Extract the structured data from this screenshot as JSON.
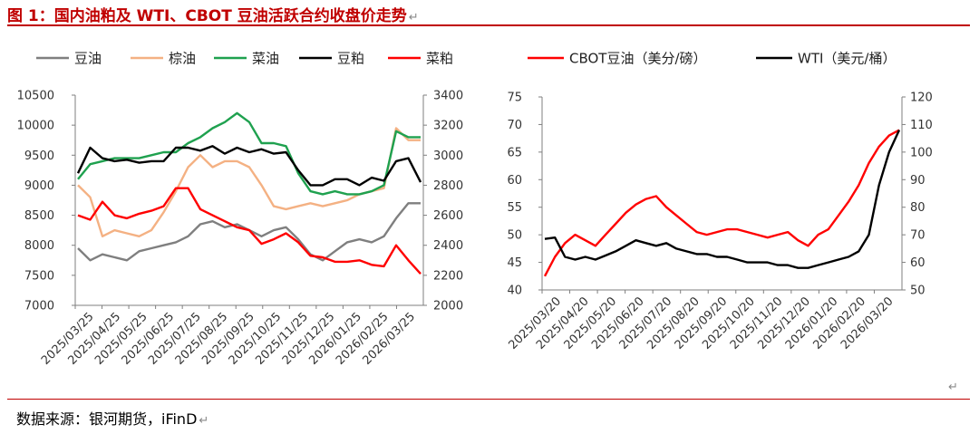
{
  "figure": {
    "title": "图 1：国内油粕及 WTI、CBOT 豆油活跃合约收盘价走势",
    "source": "数据来源：银河期货，iFinD"
  },
  "chart_data": [
    {
      "type": "line",
      "legend": [
        "豆油",
        "棕油",
        "菜油",
        "豆粕",
        "菜粕"
      ],
      "x_ticks": [
        "2025/03/25",
        "2025/04/25",
        "2025/05/25",
        "2025/06/25",
        "2025/07/25",
        "2025/08/25",
        "2025/09/25",
        "2025/10/25",
        "2025/11/25",
        "2025/12/25",
        "2026/01/25",
        "2026/02/25",
        "2026/03/25"
      ],
      "left_axis": {
        "ticks": [
          10500,
          10000,
          9500,
          9000,
          8500,
          8000,
          7500,
          7000
        ],
        "range": [
          7000,
          10500
        ]
      },
      "right_axis": {
        "ticks": [
          3400,
          3200,
          3000,
          2800,
          2600,
          2400,
          2200,
          2000
        ],
        "range": [
          2000,
          3400
        ]
      },
      "series": [
        {
          "name": "豆油",
          "axis": "left",
          "color": "#7f7f7f",
          "values": [
            7950,
            7750,
            7850,
            7800,
            7750,
            7900,
            7950,
            8000,
            8050,
            8150,
            8350,
            8400,
            8300,
            8350,
            8250,
            8150,
            8250,
            8300,
            8100,
            7850,
            7750,
            7900,
            8050,
            8100,
            8050,
            8150,
            8450,
            8700,
            8700
          ]
        },
        {
          "name": "棕油",
          "axis": "left",
          "color": "#f4b183",
          "values": [
            9000,
            8800,
            8150,
            8250,
            8200,
            8150,
            8250,
            8550,
            8900,
            9300,
            9500,
            9300,
            9400,
            9400,
            9300,
            9000,
            8650,
            8600,
            8650,
            8700,
            8650,
            8700,
            8750,
            8850,
            8900,
            8950,
            9950,
            9750,
            9750
          ]
        },
        {
          "name": "菜油",
          "axis": "left",
          "color": "#1fa14f",
          "values": [
            9100,
            9350,
            9400,
            9450,
            9450,
            9450,
            9500,
            9550,
            9550,
            9700,
            9800,
            9950,
            10050,
            10200,
            10050,
            9700,
            9700,
            9650,
            9200,
            8900,
            8850,
            8900,
            8850,
            8850,
            8900,
            9000,
            9900,
            9800,
            9800
          ]
        },
        {
          "name": "豆粕",
          "axis": "right",
          "color": "#000000",
          "values": [
            2880,
            3050,
            2980,
            2960,
            2970,
            2950,
            2960,
            2960,
            3050,
            3050,
            3030,
            3060,
            3010,
            3050,
            3020,
            3040,
            3010,
            3020,
            2900,
            2800,
            2800,
            2840,
            2840,
            2800,
            2850,
            2830,
            2960,
            2980,
            2820
          ]
        },
        {
          "name": "菜粕",
          "axis": "right",
          "color": "#ff0000",
          "values": [
            2600,
            2570,
            2690,
            2600,
            2580,
            2610,
            2630,
            2660,
            2780,
            2780,
            2640,
            2600,
            2560,
            2520,
            2500,
            2410,
            2440,
            2480,
            2420,
            2330,
            2320,
            2290,
            2290,
            2300,
            2270,
            2260,
            2400,
            2300,
            2210
          ]
        }
      ]
    },
    {
      "type": "line",
      "legend": [
        "CBOT豆油（美分/磅）",
        "WTI（美元/桶）"
      ],
      "x_ticks": [
        "2025/03/20",
        "2025/04/20",
        "2025/05/20",
        "2025/06/20",
        "2025/07/20",
        "2025/08/20",
        "2025/09/20",
        "2025/10/20",
        "2025/11/20",
        "2025/12/20",
        "2026/01/20",
        "2026/02/20",
        "2026/03/20"
      ],
      "left_axis": {
        "ticks": [
          75,
          70,
          65,
          60,
          55,
          50,
          45,
          40
        ],
        "range": [
          40,
          75
        ]
      },
      "right_axis": {
        "ticks": [
          120,
          110,
          100,
          90,
          80,
          70,
          60,
          50
        ],
        "range": [
          50,
          120
        ]
      },
      "series": [
        {
          "name": "CBOT豆油（美分/磅）",
          "axis": "left",
          "color": "#ff0000",
          "values": [
            42.5,
            46,
            48.5,
            50,
            49,
            48,
            50,
            52,
            54,
            55.5,
            56.5,
            57,
            55,
            53.5,
            52,
            50.5,
            50,
            50.5,
            51,
            51,
            50.5,
            50,
            49.5,
            50,
            50.5,
            49,
            48,
            50,
            51,
            53.5,
            56,
            59,
            63,
            66,
            68,
            69
          ]
        },
        {
          "name": "WTI（美元/桶）",
          "axis": "right",
          "color": "#000000",
          "values": [
            68.5,
            69,
            62,
            61,
            62,
            61,
            62.5,
            64,
            66,
            68,
            67,
            66,
            67,
            65,
            64,
            63,
            63,
            62,
            62,
            61,
            60,
            60,
            60,
            59,
            59,
            58,
            58,
            59,
            60,
            61,
            62,
            64,
            70,
            88,
            100,
            108
          ]
        }
      ]
    }
  ]
}
